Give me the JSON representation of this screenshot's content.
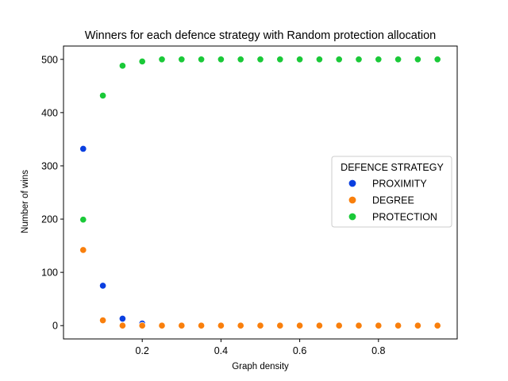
{
  "chart_data": {
    "type": "scatter",
    "title": "Winners for each defence strategy with Random protection allocation",
    "xlabel": "Graph density",
    "ylabel": "Number of wins",
    "xlim": [
      0.0,
      1.0
    ],
    "ylim": [
      -25,
      525
    ],
    "xticks": [
      0.2,
      0.4,
      0.6,
      0.8
    ],
    "xtick_labels": [
      "0.2",
      "0.4",
      "0.6",
      "0.8"
    ],
    "yticks": [
      0,
      100,
      200,
      300,
      400,
      500
    ],
    "ytick_labels": [
      "0",
      "100",
      "200",
      "300",
      "400",
      "500"
    ],
    "grid": false,
    "legend": {
      "title": "DEFENCE STRATEGY",
      "placement": "center-right"
    },
    "x": [
      0.05,
      0.1,
      0.15,
      0.2,
      0.25,
      0.3,
      0.35,
      0.4,
      0.45,
      0.5,
      0.55,
      0.6,
      0.65,
      0.7,
      0.75,
      0.8,
      0.85,
      0.9,
      0.95
    ],
    "series": [
      {
        "name": "PROXIMITY",
        "color": "#0a3fe0",
        "values": [
          332,
          75,
          13,
          4,
          0,
          0,
          0,
          0,
          0,
          0,
          0,
          0,
          0,
          0,
          0,
          0,
          0,
          0,
          0
        ]
      },
      {
        "name": "DEGREE",
        "color": "#f97f0c",
        "values": [
          142,
          10,
          0,
          0,
          0,
          0,
          0,
          0,
          0,
          0,
          0,
          0,
          0,
          0,
          0,
          0,
          0,
          0,
          0
        ]
      },
      {
        "name": "PROTECTION",
        "color": "#1ac938",
        "values": [
          199,
          432,
          488,
          496,
          500,
          500,
          500,
          500,
          500,
          500,
          500,
          500,
          500,
          500,
          500,
          500,
          500,
          500,
          500
        ]
      }
    ]
  }
}
